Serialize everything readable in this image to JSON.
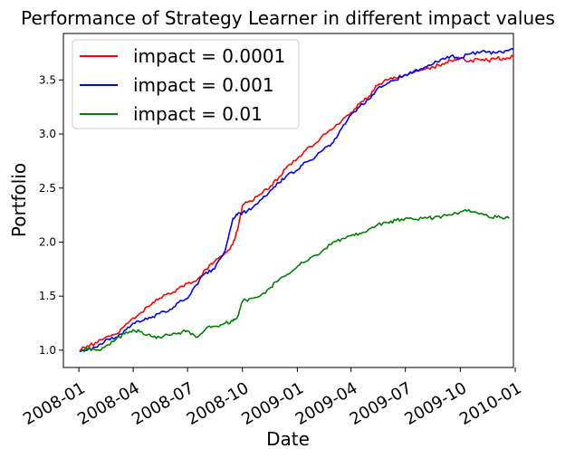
{
  "chart_data": {
    "type": "line",
    "title": "Performance of Strategy Learner in different impact values",
    "xlabel": "Date",
    "ylabel": "Portfolio",
    "xlim": [
      "2007-12-06",
      "2009-12-29"
    ],
    "ylim": [
      0.84,
      3.93
    ],
    "x_ticks": [
      "2008-01",
      "2008-04",
      "2008-07",
      "2008-10",
      "2009-01",
      "2009-04",
      "2009-07",
      "2009-10",
      "2010-01"
    ],
    "y_ticks": [
      "1.0",
      "1.5",
      "2.0",
      "2.5",
      "3.0",
      "3.5"
    ],
    "grid": false,
    "legend_position": "upper-left",
    "series": [
      {
        "name": "impact = 0.0001",
        "color": "#ff0000",
        "x": [
          "2008-01-02",
          "2008-01-15",
          "2008-02-01",
          "2008-02-15",
          "2008-03-03",
          "2008-03-17",
          "2008-04-01",
          "2008-04-15",
          "2008-05-01",
          "2008-05-15",
          "2008-06-02",
          "2008-06-16",
          "2008-07-01",
          "2008-07-15",
          "2008-08-01",
          "2008-08-15",
          "2008-09-02",
          "2008-09-15",
          "2008-09-22",
          "2008-10-01",
          "2008-10-15",
          "2008-11-03",
          "2008-11-17",
          "2008-12-01",
          "2008-12-15",
          "2009-01-02",
          "2009-01-15",
          "2009-02-02",
          "2009-02-17",
          "2009-03-02",
          "2009-03-16",
          "2009-04-01",
          "2009-04-15",
          "2009-05-01",
          "2009-05-15",
          "2009-06-01",
          "2009-06-15",
          "2009-07-01",
          "2009-07-15",
          "2009-08-03",
          "2009-08-17",
          "2009-09-01",
          "2009-09-15",
          "2009-10-01",
          "2009-10-15",
          "2009-11-02",
          "2009-11-16",
          "2009-12-01",
          "2009-12-15",
          "2009-12-29"
        ],
        "y": [
          1.0,
          1.04,
          1.07,
          1.12,
          1.15,
          1.22,
          1.3,
          1.35,
          1.42,
          1.48,
          1.52,
          1.57,
          1.62,
          1.64,
          1.75,
          1.82,
          1.9,
          1.98,
          2.1,
          2.34,
          2.38,
          2.45,
          2.52,
          2.6,
          2.7,
          2.78,
          2.85,
          2.92,
          3.0,
          3.05,
          3.12,
          3.2,
          3.28,
          3.35,
          3.45,
          3.5,
          3.52,
          3.55,
          3.57,
          3.6,
          3.62,
          3.65,
          3.68,
          3.7,
          3.67,
          3.69,
          3.68,
          3.7,
          3.69,
          3.72
        ]
      },
      {
        "name": "impact = 0.001",
        "color": "#0000ff",
        "x": [
          "2008-01-02",
          "2008-01-15",
          "2008-02-01",
          "2008-02-15",
          "2008-03-03",
          "2008-03-17",
          "2008-04-01",
          "2008-04-15",
          "2008-05-01",
          "2008-05-15",
          "2008-06-02",
          "2008-06-16",
          "2008-07-01",
          "2008-07-15",
          "2008-08-01",
          "2008-08-15",
          "2008-09-02",
          "2008-09-15",
          "2008-09-22",
          "2008-10-01",
          "2008-10-15",
          "2008-11-03",
          "2008-11-17",
          "2008-12-01",
          "2008-12-15",
          "2009-01-02",
          "2009-01-15",
          "2009-02-02",
          "2009-02-17",
          "2009-03-02",
          "2009-03-16",
          "2009-04-01",
          "2009-04-15",
          "2009-05-01",
          "2009-05-15",
          "2009-06-01",
          "2009-06-15",
          "2009-07-01",
          "2009-07-15",
          "2009-08-03",
          "2009-08-17",
          "2009-09-01",
          "2009-09-15",
          "2009-10-01",
          "2009-10-15",
          "2009-11-02",
          "2009-11-16",
          "2009-12-01",
          "2009-12-15",
          "2009-12-29"
        ],
        "y": [
          0.99,
          1.0,
          1.03,
          1.1,
          1.12,
          1.18,
          1.25,
          1.27,
          1.3,
          1.34,
          1.38,
          1.44,
          1.48,
          1.6,
          1.72,
          1.75,
          1.92,
          2.22,
          2.25,
          2.27,
          2.3,
          2.4,
          2.48,
          2.55,
          2.62,
          2.67,
          2.74,
          2.8,
          2.88,
          2.92,
          3.05,
          3.18,
          3.25,
          3.32,
          3.42,
          3.47,
          3.5,
          3.55,
          3.58,
          3.62,
          3.65,
          3.7,
          3.72,
          3.7,
          3.74,
          3.75,
          3.76,
          3.75,
          3.77,
          3.78
        ]
      },
      {
        "name": "impact = 0.01",
        "color": "#008000",
        "x": [
          "2008-01-02",
          "2008-01-15",
          "2008-02-01",
          "2008-02-15",
          "2008-03-03",
          "2008-03-17",
          "2008-04-01",
          "2008-04-15",
          "2008-05-01",
          "2008-05-15",
          "2008-06-02",
          "2008-06-16",
          "2008-07-01",
          "2008-07-15",
          "2008-08-01",
          "2008-08-15",
          "2008-09-02",
          "2008-09-15",
          "2008-09-22",
          "2008-10-01",
          "2008-10-15",
          "2008-11-03",
          "2008-11-17",
          "2008-12-01",
          "2008-12-15",
          "2009-01-02",
          "2009-01-15",
          "2009-02-02",
          "2009-02-17",
          "2009-03-02",
          "2009-03-16",
          "2009-04-01",
          "2009-04-15",
          "2009-05-01",
          "2009-05-15",
          "2009-06-01",
          "2009-06-15",
          "2009-07-01",
          "2009-07-15",
          "2009-08-03",
          "2009-08-17",
          "2009-09-01",
          "2009-09-15",
          "2009-10-01",
          "2009-10-15",
          "2009-11-02",
          "2009-11-16",
          "2009-12-01",
          "2009-12-15",
          "2009-12-22"
        ],
        "y": [
          0.99,
          1.01,
          1.0,
          1.04,
          1.1,
          1.15,
          1.19,
          1.17,
          1.13,
          1.12,
          1.14,
          1.16,
          1.18,
          1.12,
          1.2,
          1.22,
          1.25,
          1.27,
          1.3,
          1.45,
          1.48,
          1.52,
          1.58,
          1.65,
          1.7,
          1.78,
          1.82,
          1.88,
          1.94,
          2.0,
          2.03,
          2.06,
          2.08,
          2.12,
          2.16,
          2.18,
          2.2,
          2.22,
          2.21,
          2.23,
          2.22,
          2.24,
          2.25,
          2.28,
          2.3,
          2.26,
          2.24,
          2.23,
          2.22,
          2.23
        ]
      }
    ]
  }
}
